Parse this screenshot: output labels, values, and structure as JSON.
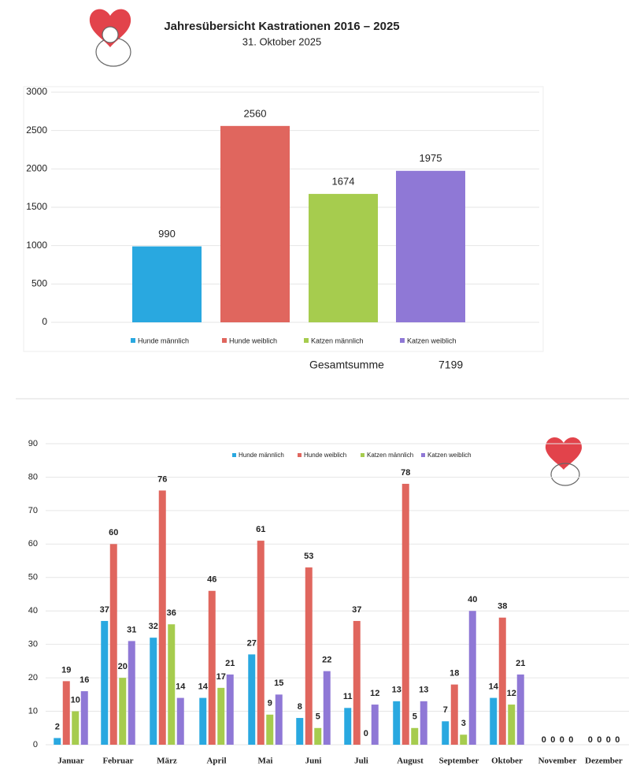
{
  "header": {
    "title": "Jahresübersicht Kastrationen 2016 – 2025",
    "date": "31. Oktober 2025"
  },
  "chart_data": [
    {
      "type": "bar",
      "categories": [
        "Hunde männlich",
        "Hunde weiblich",
        "Katzen männlich",
        "Katzen weiblich"
      ],
      "values": [
        990,
        2560,
        1674,
        1975
      ],
      "colors": [
        "#29a8e0",
        "#e0665e",
        "#a6cc4e",
        "#8f78d6"
      ],
      "ylim": [
        0,
        3000
      ],
      "yticks": [
        0,
        500,
        1000,
        1500,
        2000,
        2500,
        3000
      ],
      "grid": true,
      "total_label": "Gesamtsumme",
      "total": 7199
    },
    {
      "type": "bar",
      "categories": [
        "Januar",
        "Februar",
        "März",
        "April",
        "Mai",
        "Juni",
        "Juli",
        "August",
        "September",
        "Oktober",
        "November",
        "Dezember"
      ],
      "series": [
        {
          "name": "Hunde männlich",
          "color": "#29a8e0",
          "values": [
            2,
            37,
            32,
            14,
            27,
            8,
            11,
            13,
            7,
            14,
            0,
            0
          ]
        },
        {
          "name": "Hunde weiblich",
          "color": "#e0665e",
          "values": [
            19,
            60,
            76,
            46,
            61,
            53,
            37,
            78,
            18,
            38,
            0,
            0
          ]
        },
        {
          "name": "Katzen männlich",
          "color": "#a6cc4e",
          "values": [
            10,
            20,
            36,
            17,
            9,
            5,
            0,
            5,
            3,
            12,
            0,
            0
          ]
        },
        {
          "name": "Katzen weiblich",
          "color": "#8f78d6",
          "values": [
            16,
            31,
            14,
            21,
            15,
            22,
            12,
            13,
            40,
            21,
            0,
            0
          ]
        }
      ],
      "ylim": [
        0,
        90
      ],
      "yticks": [
        0,
        10,
        20,
        30,
        40,
        50,
        60,
        70,
        80,
        90
      ],
      "grid": true
    }
  ]
}
